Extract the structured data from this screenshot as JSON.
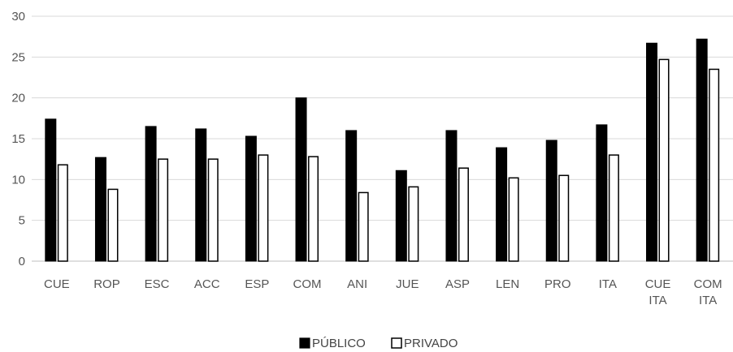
{
  "chart_data": {
    "type": "bar",
    "categories": [
      [
        "CUE"
      ],
      [
        "ROP"
      ],
      [
        "ESC"
      ],
      [
        "ACC"
      ],
      [
        "ESP"
      ],
      [
        "COM"
      ],
      [
        "ANI"
      ],
      [
        "JUE"
      ],
      [
        "ASP"
      ],
      [
        "LEN"
      ],
      [
        "PRO"
      ],
      [
        "ITA"
      ],
      [
        "CUE",
        "ITA"
      ],
      [
        "COM",
        "ITA"
      ]
    ],
    "series": [
      {
        "name": "PÚBLICO",
        "color": "#000000",
        "fill": "solid",
        "values": [
          17.4,
          12.7,
          16.5,
          16.2,
          15.3,
          20.0,
          16.0,
          11.1,
          16.0,
          13.9,
          14.8,
          16.7,
          26.7,
          27.2
        ]
      },
      {
        "name": "PRIVADO",
        "color": "#000000",
        "fill": "outline",
        "values": [
          11.8,
          8.8,
          12.5,
          12.5,
          13.0,
          12.8,
          8.4,
          9.1,
          11.4,
          10.2,
          10.5,
          13.0,
          24.7,
          23.5
        ]
      }
    ],
    "title": "",
    "xlabel": "",
    "ylabel": "",
    "ylim": [
      0,
      30
    ],
    "yticks": [
      0,
      5,
      10,
      15,
      20,
      25,
      30
    ],
    "grid": true,
    "legend_position": "bottom"
  }
}
